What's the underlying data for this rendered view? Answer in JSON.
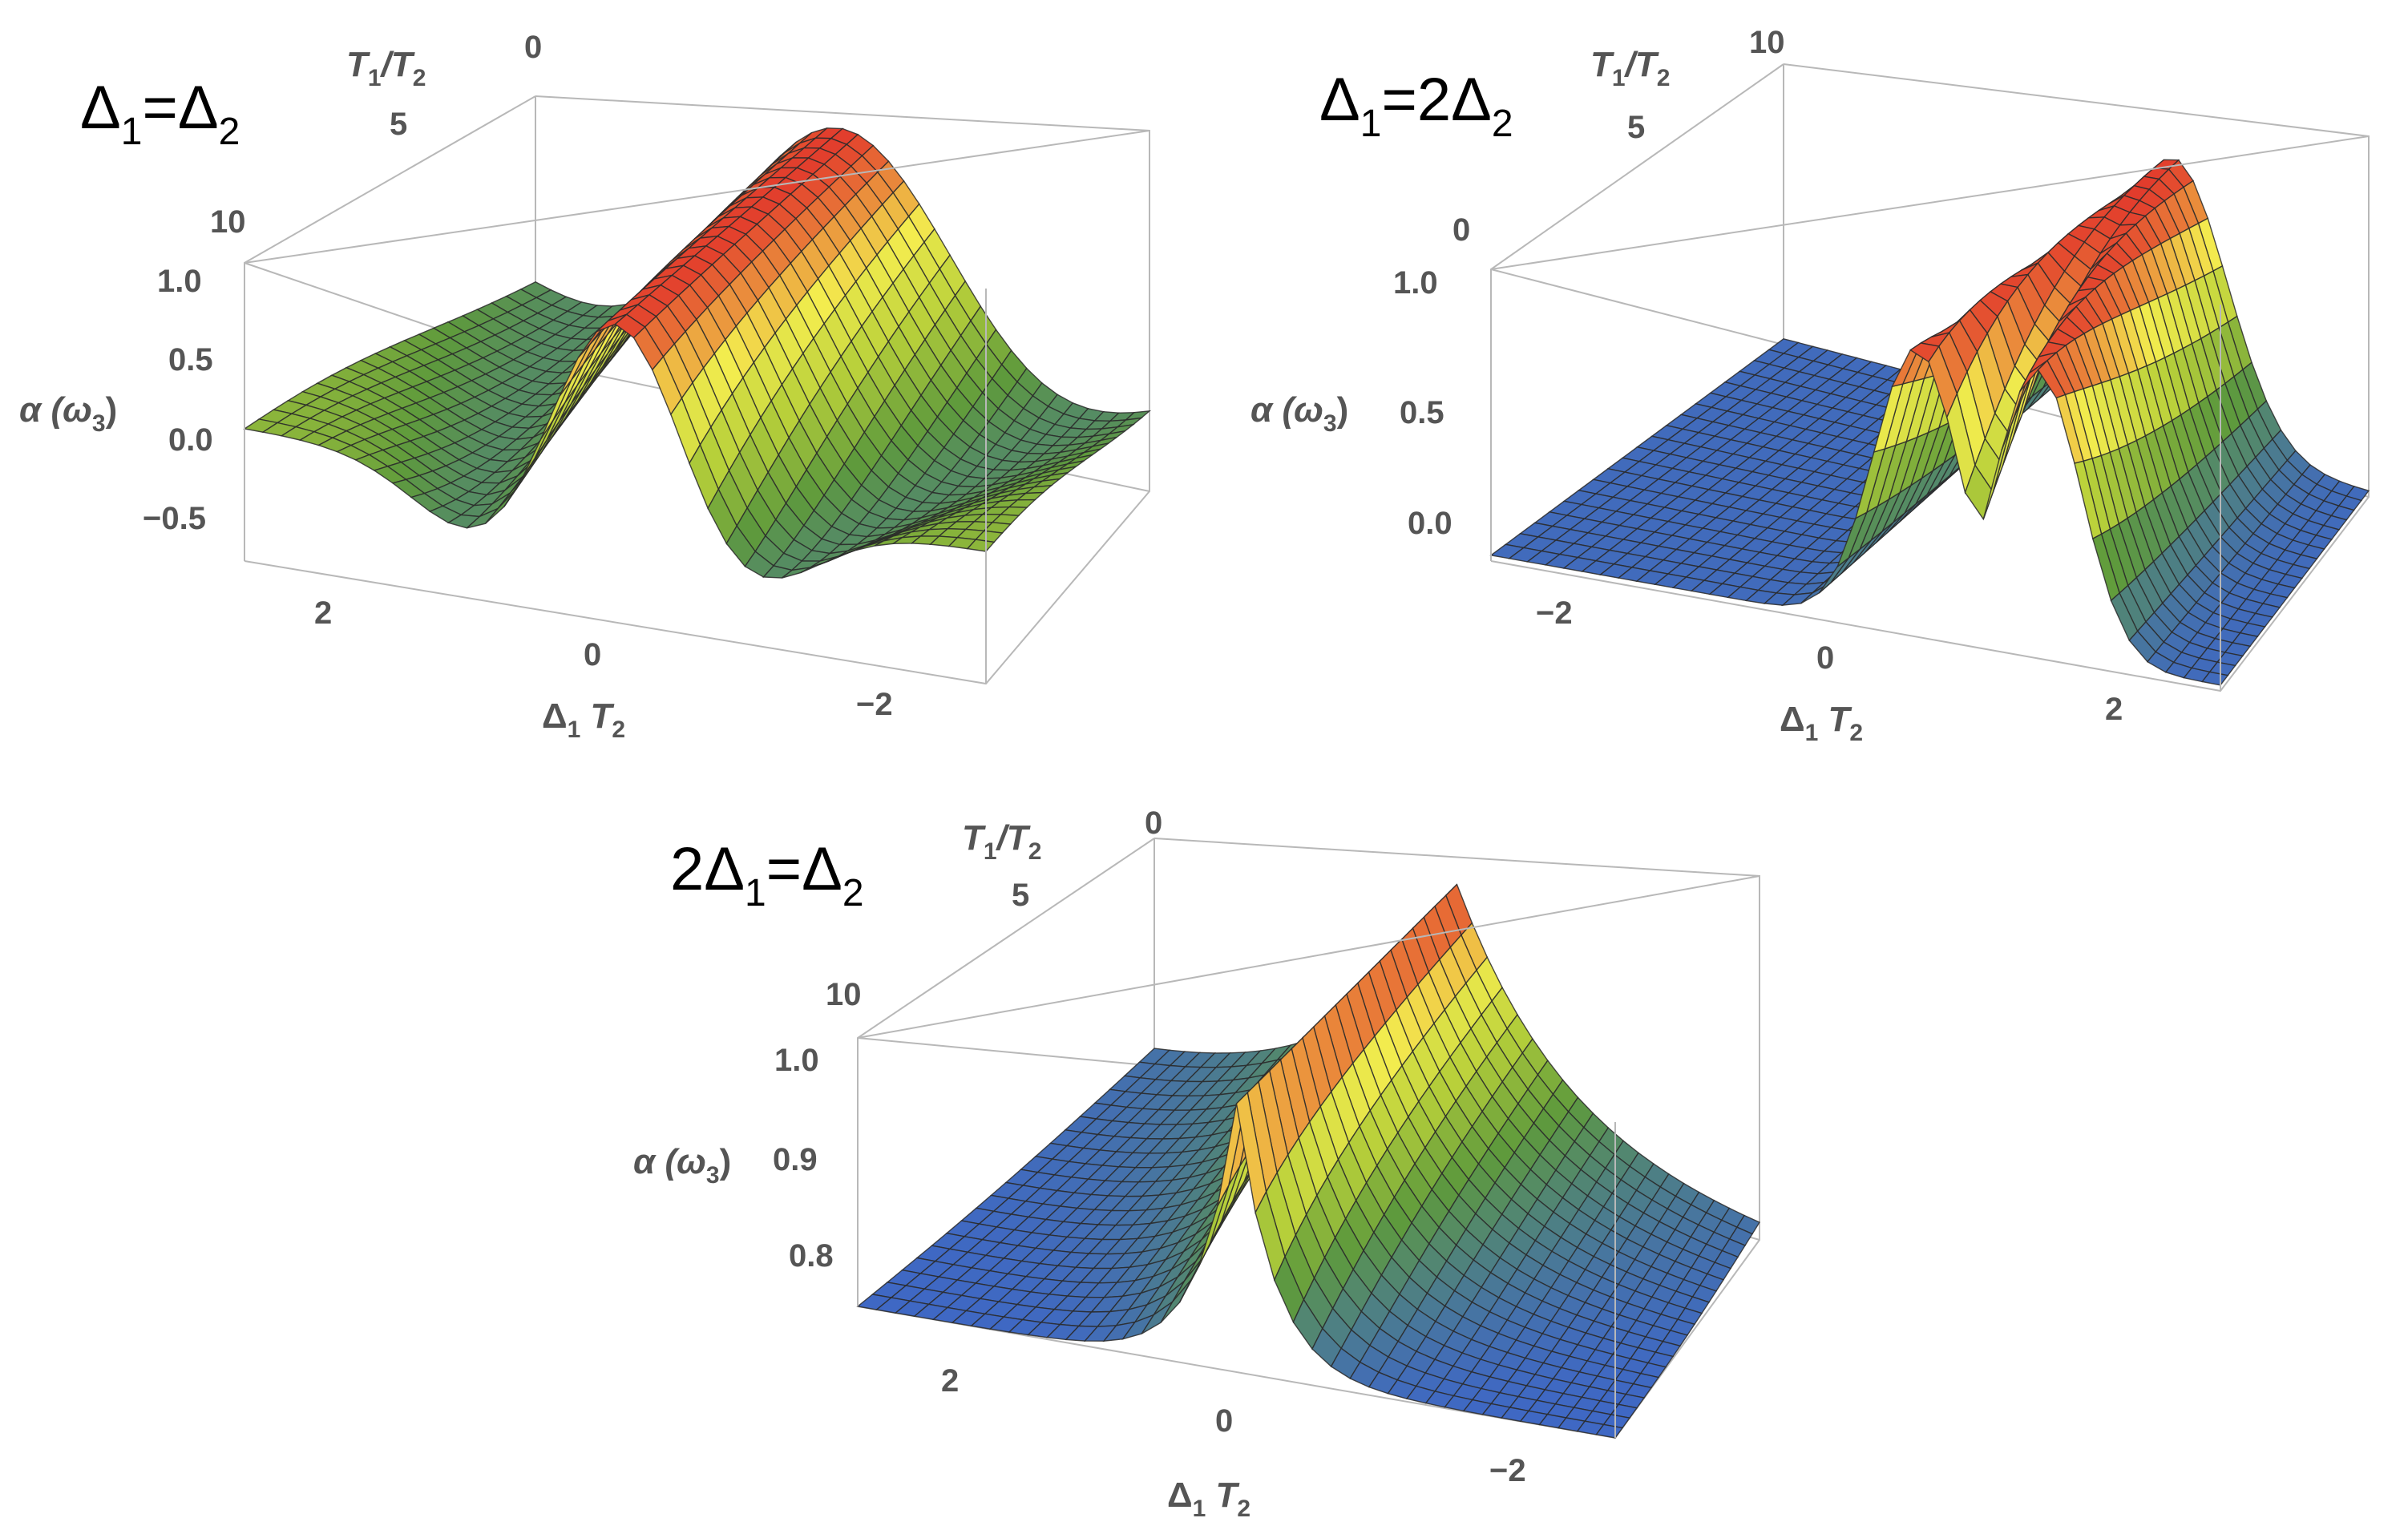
{
  "colors": {
    "low": "#3f68c4",
    "mid_low": "#5e9a3c",
    "mid": "#b8d03a",
    "mid_high": "#f3ec4e",
    "high": "#e23b2c",
    "box": "#b8b8b8",
    "tick": "#555555"
  },
  "chart_data": [
    {
      "type": "surface3d",
      "title": "Δ1=Δ2",
      "xlabel": "Δ1 T2",
      "ylabel": "T1/T2",
      "zlabel": "α (ω3)",
      "x_ticks": [
        "2",
        "0",
        "−2"
      ],
      "y_ticks": [
        "0",
        "5",
        "10"
      ],
      "z_ticks": [
        "1.0",
        "0.5",
        "0.0",
        "−0.5"
      ],
      "xlim": [
        -3,
        3
      ],
      "ylim": [
        0,
        10
      ],
      "zlim": [
        -0.8,
        1.0
      ],
      "surface": "oscillatory: peak ≈1.0 at Δ1T2 = 0, minima ≈ −0.7 near Δ1T2 = ±1.8, flattening to ≈ 0 at large |Δ1T2|; features sharpen as T1/T2 grows"
    },
    {
      "type": "surface3d",
      "title": "Δ1=2Δ2",
      "xlabel": "Δ1 T2",
      "ylabel": "T1/T2",
      "zlabel": "α (ω3)",
      "x_ticks": [
        "−2",
        "0",
        "2"
      ],
      "y_ticks": [
        "10",
        "5",
        "0"
      ],
      "z_ticks": [
        "1.0",
        "0.5",
        "0.0"
      ],
      "xlim": [
        -3,
        3
      ],
      "ylim": [
        0,
        10
      ],
      "zlim": [
        0,
        1.0
      ],
      "surface": "near 0 away from center, double-humped peak ≈1.0 around Δ1T2 ≈ 1, splitting further at large T1/T2"
    },
    {
      "type": "surface3d",
      "title": "2Δ1=Δ2",
      "xlabel": "Δ1 T2",
      "ylabel": "T1/T2",
      "zlabel": "α (ω3)",
      "x_ticks": [
        "2",
        "0",
        "−2"
      ],
      "y_ticks": [
        "0",
        "5",
        "10"
      ],
      "z_ticks": [
        "1.0",
        "0.9",
        "0.8"
      ],
      "xlim": [
        -3,
        3
      ],
      "ylim": [
        0,
        10
      ],
      "zlim": [
        0.75,
        1.0
      ],
      "surface": "baseline ≈0.75, sharp peak ≈1.0 at Δ1T2 = 0 that narrows as T1/T2 grows"
    }
  ]
}
